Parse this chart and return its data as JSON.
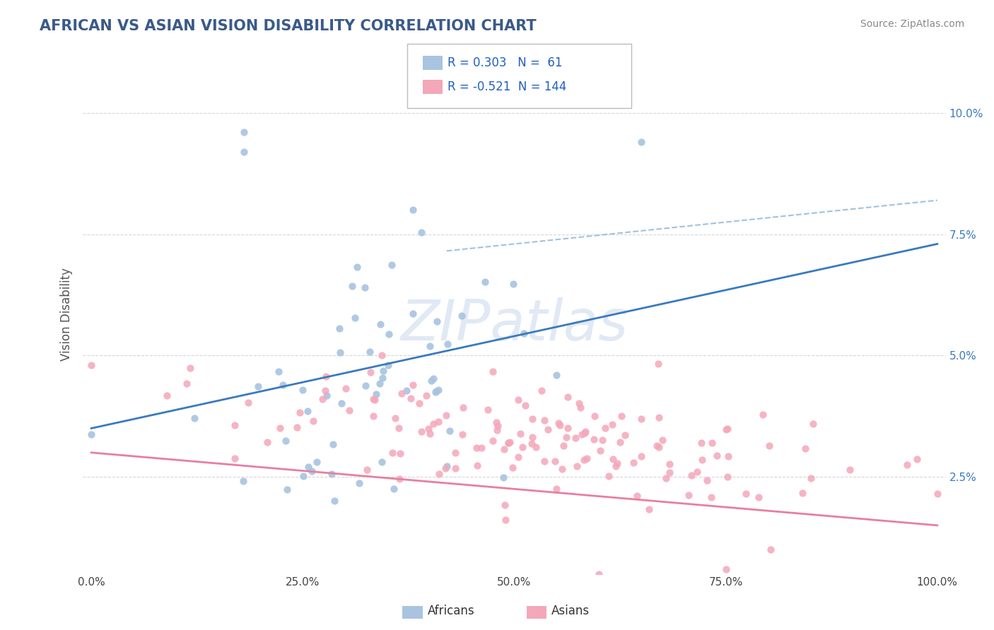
{
  "title": "AFRICAN VS ASIAN VISION DISABILITY CORRELATION CHART",
  "source": "Source: ZipAtlas.com",
  "ylabel": "Vision Disability",
  "watermark": "ZIPatlas",
  "xlim": [
    -0.01,
    1.01
  ],
  "ylim": [
    0.005,
    0.112
  ],
  "xticks": [
    0.0,
    0.25,
    0.5,
    0.75,
    1.0
  ],
  "xtick_labels": [
    "0.0%",
    "25.0%",
    "50.0%",
    "75.0%",
    "100.0%"
  ],
  "yticks": [
    0.025,
    0.05,
    0.075,
    0.1
  ],
  "ytick_labels": [
    "2.5%",
    "5.0%",
    "7.5%",
    "10.0%"
  ],
  "african_color": "#a8c4e0",
  "asian_color": "#f4a7b9",
  "african_line_color": "#3a7abf",
  "asian_line_color": "#e87fa0",
  "dashed_line_color": "#90b8d8",
  "african_R": 0.303,
  "african_N": 61,
  "asian_R": -0.521,
  "asian_N": 144,
  "title_color": "#3a5a8a",
  "source_color": "#888888",
  "background_color": "#ffffff",
  "grid_color": "#cccccc",
  "legend_R_color": "#2060c0",
  "african_line_y0": 0.035,
  "african_line_y1": 0.073,
  "asian_line_y0": 0.03,
  "asian_line_y1": 0.015,
  "dashed_line_y0": 0.064,
  "dashed_line_y1": 0.082
}
